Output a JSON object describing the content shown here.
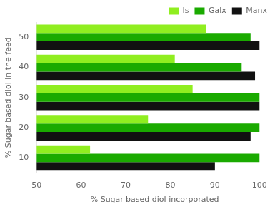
{
  "chart_data": {
    "type": "bar",
    "orientation": "horizontal",
    "categories": [
      10,
      20,
      30,
      40,
      50
    ],
    "series": [
      {
        "name": "Is",
        "color": "#90ee20",
        "values": [
          62,
          75,
          85,
          81,
          88
        ]
      },
      {
        "name": "Galx",
        "color": "#1aaa00",
        "values": [
          100,
          100,
          100,
          96,
          98
        ]
      },
      {
        "name": "Manx",
        "color": "#111111",
        "values": [
          90,
          98,
          100,
          99,
          100
        ]
      }
    ],
    "xlabel": "% Sugar-based diol incorporated",
    "ylabel": "% Sugar-based diol in the feed",
    "xlim": [
      50,
      103
    ],
    "xticks": [
      50,
      60,
      70,
      80,
      90,
      100
    ],
    "grid": false,
    "legend": "upper right"
  }
}
